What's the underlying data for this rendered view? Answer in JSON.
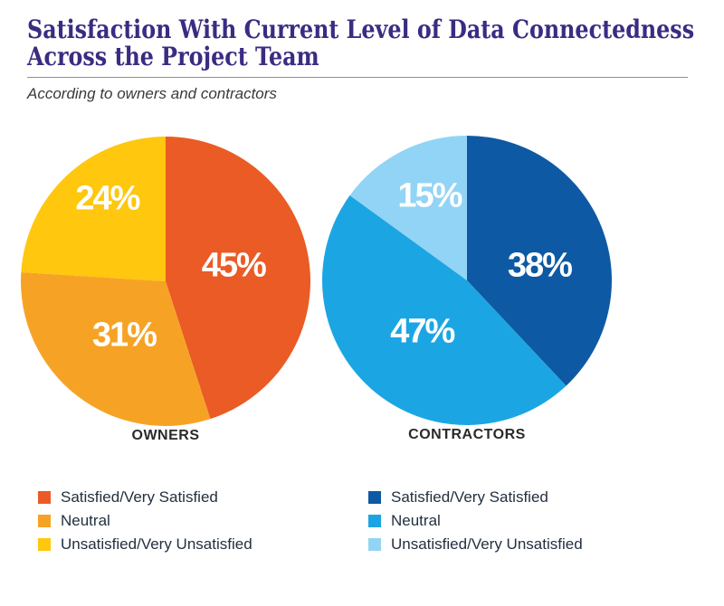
{
  "header": {
    "title_line1": "Satisfaction With Current Level of Data Connectedness",
    "title_line2": "Across the Project Team",
    "title_color": "#3C2B82",
    "subtitle": "According to owners and contractors"
  },
  "chart_data": [
    {
      "type": "pie",
      "group_label": "OWNERS",
      "direction": "clockwise",
      "start_angle_deg": 0,
      "slices": [
        {
          "label": "Satisfied/Very Satisfied",
          "value": 45,
          "display": "45%",
          "color": "#EA5B25"
        },
        {
          "label": "Neutral",
          "value": 31,
          "display": "31%",
          "color": "#F6A325"
        },
        {
          "label": "Unsatisfied/Very Unsatisfied",
          "value": 24,
          "display": "24%",
          "color": "#FFC70D"
        }
      ]
    },
    {
      "type": "pie",
      "group_label": "CONTRACTORS",
      "direction": "clockwise",
      "start_angle_deg": 0,
      "slices": [
        {
          "label": "Satisfied/Very Satisfied",
          "value": 38,
          "display": "38%",
          "color": "#0E59A4"
        },
        {
          "label": "Neutral",
          "value": 47,
          "display": "47%",
          "color": "#1BA6E3"
        },
        {
          "label": "Unsatisfied/Very Unsatisfied",
          "value": 15,
          "display": "15%",
          "color": "#92D4F5"
        }
      ]
    }
  ],
  "value_label_color": "#FFFFFF"
}
